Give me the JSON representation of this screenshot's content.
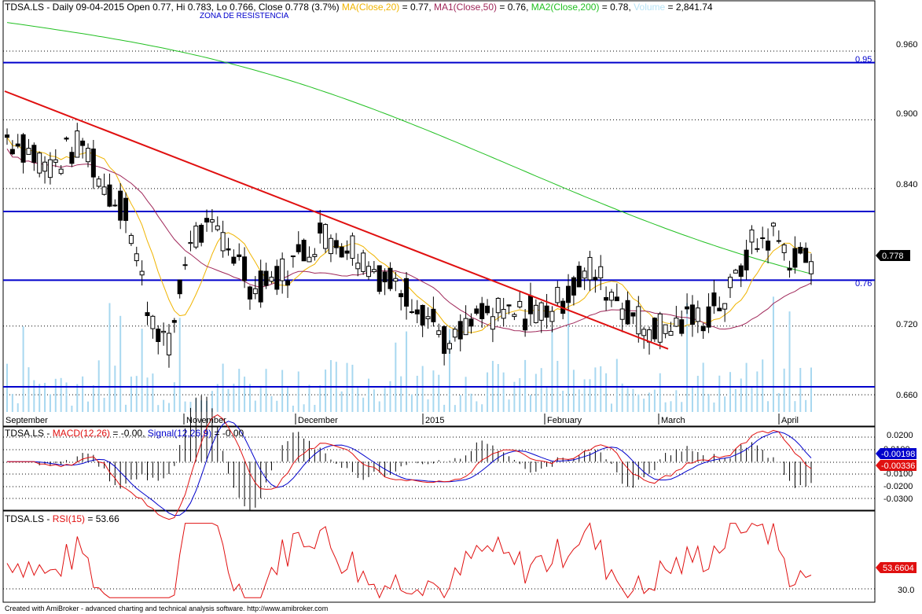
{
  "chart_data": [
    {
      "type": "candlestick",
      "header": {
        "symbol": "TDSA.LS",
        "info": " - Daily 09-04-2015 Open 0.77, Hi 0.783, Lo 0.766, Close 0.778 (3.7%)",
        "ma20": "MA(Close,20)",
        "ma20_val": " = 0.77,",
        "ma50": "MA1(Close,50)",
        "ma50_val": " = 0.76,",
        "ma200": "MA2(Close,200)",
        "ma200_val": " = 0.78,",
        "volume": "Volume",
        "volume_val": " = 2,841.74"
      },
      "annotation": "ZONA DE RESISTENCIA",
      "ylim": [
        0.645,
        0.995
      ],
      "yticks": [
        "0.960",
        "0.900",
        "0.840",
        "0.720",
        "0.660"
      ],
      "x_labels": [
        "September",
        "November",
        "December",
        "2015",
        "February",
        "March",
        "April"
      ],
      "last_close_label": "0.778",
      "hlines": [
        {
          "value": 0.95,
          "label": "0.95"
        },
        {
          "value": 0.82,
          "label": ""
        },
        {
          "value": 0.76,
          "label": "0.76"
        },
        {
          "value": 0.667,
          "label": ""
        }
      ],
      "colors": {
        "ma20": "#f0b400",
        "ma50": "#a0285a",
        "ma200": "#22c022",
        "trend": "#e01010",
        "hline": "#0000cc",
        "volume": "#a8d8f0"
      }
    },
    {
      "type": "line",
      "header": {
        "symbol": "TDSA.LS",
        "macd": "MACD(12,26)",
        "macd_val": " = -0.00,",
        "signal": "Signal(12,26,9)",
        "signal_val": " = -0.00"
      },
      "ylim": [
        -0.035,
        0.025
      ],
      "yticks": [
        "0.0200",
        "0.0100",
        "-0.0100",
        "-0.0200",
        "-0.0300"
      ],
      "last_labels": [
        "-0.00198",
        "-0.00336"
      ]
    },
    {
      "type": "line",
      "header": {
        "symbol": "TDSA.LS",
        "rsi": "RSI(15)",
        "rsi_val": " = 53.66"
      },
      "ylim": [
        25,
        80
      ],
      "yticks": [
        "30.0"
      ],
      "last_label": "53.6604"
    }
  ],
  "footer": "Created with AmiBroker - advanced charting and technical analysis software. http://www.amibroker.com"
}
